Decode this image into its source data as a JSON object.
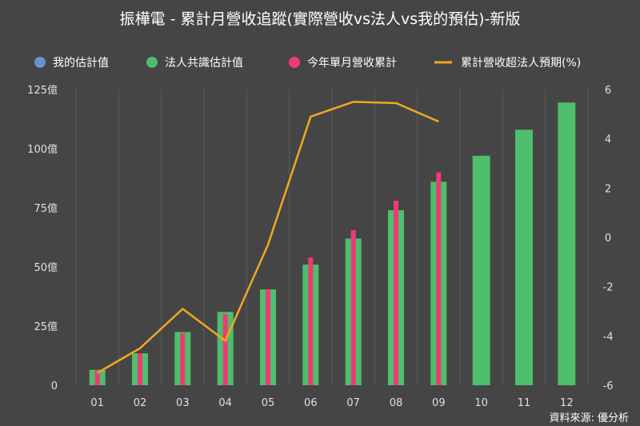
{
  "chart_data": {
    "type": "bar",
    "title": "振樺電 - 累計月營收追蹤(實際營收vs法人vs我的預估)-新版",
    "categories": [
      "01",
      "02",
      "03",
      "04",
      "05",
      "06",
      "07",
      "08",
      "09",
      "10",
      "11",
      "12"
    ],
    "series": [
      {
        "name": "我的估計值",
        "kind": "bar",
        "axis": "left",
        "values": [
          null,
          null,
          null,
          null,
          null,
          null,
          null,
          null,
          null,
          null,
          null,
          null
        ]
      },
      {
        "name": "法人共識估計值",
        "kind": "bar",
        "axis": "left",
        "values": [
          6.5,
          13.5,
          22.5,
          31,
          40.5,
          51,
          62,
          74,
          86,
          97,
          108,
          119.5
        ]
      },
      {
        "name": "今年單月營收累計",
        "kind": "bar",
        "axis": "left",
        "values": [
          6.2,
          13.5,
          22,
          30,
          40.5,
          54,
          65.5,
          78,
          90,
          null,
          null,
          null
        ]
      },
      {
        "name": "累計營收超法人預期(%)",
        "kind": "line",
        "axis": "right",
        "values": [
          -5.5,
          -4.5,
          -2.9,
          -4.2,
          -0.3,
          4.9,
          5.5,
          5.45,
          4.7,
          null,
          null,
          null
        ]
      }
    ],
    "colors": {
      "mine": "#6b8fd4",
      "consensus": "#4cbe6c",
      "actual": "#ef3b74",
      "line": "#f0a81e"
    },
    "y_left": {
      "range": [
        0,
        125
      ],
      "ticks": [
        0,
        25,
        50,
        75,
        100,
        125
      ],
      "unit": "億"
    },
    "y_right": {
      "range": [
        -6,
        6
      ],
      "ticks": [
        -6,
        -4,
        -2,
        0,
        2,
        4,
        6
      ]
    },
    "grid": "vertical",
    "legend_position": "top",
    "source": "資料來源: 優分析"
  }
}
